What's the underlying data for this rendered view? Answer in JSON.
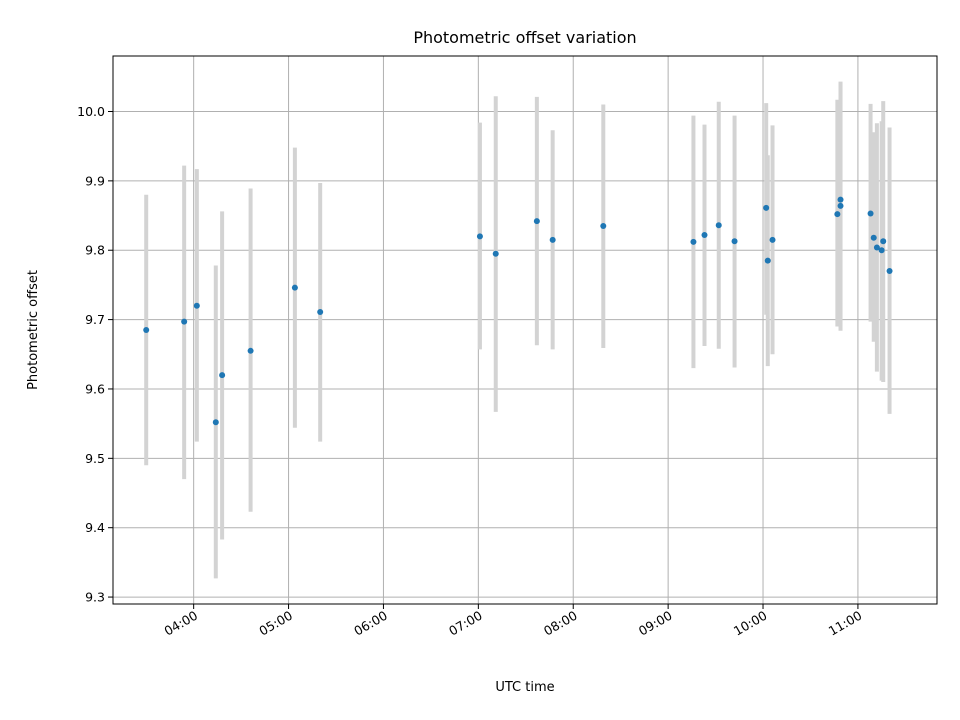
{
  "chart_data": {
    "type": "scatter",
    "title": "Photometric offset variation",
    "xlabel": "UTC time",
    "ylabel": "Photometric offset",
    "x_format": "HH:MM",
    "xlim": [
      "03:09",
      "11:50"
    ],
    "ylim": [
      9.29,
      10.08
    ],
    "x_ticks": [
      "04:00",
      "05:00",
      "06:00",
      "07:00",
      "08:00",
      "09:00",
      "10:00",
      "11:00"
    ],
    "y_ticks": [
      "9.3",
      "9.4",
      "9.5",
      "9.6",
      "9.7",
      "9.8",
      "9.9",
      "10.0"
    ],
    "grid": true,
    "marker_color": "#1f77b4",
    "errorbar_color": "#d3d3d3",
    "points": [
      {
        "x": "03:30",
        "y": 9.685,
        "ylow": 9.49,
        "yhigh": 9.88
      },
      {
        "x": "03:54",
        "y": 9.697,
        "ylow": 9.47,
        "yhigh": 9.922
      },
      {
        "x": "04:02",
        "y": 9.72,
        "ylow": 9.524,
        "yhigh": 9.917
      },
      {
        "x": "04:14",
        "y": 9.552,
        "ylow": 9.327,
        "yhigh": 9.778
      },
      {
        "x": "04:18",
        "y": 9.62,
        "ylow": 9.383,
        "yhigh": 9.856
      },
      {
        "x": "04:36",
        "y": 9.655,
        "ylow": 9.423,
        "yhigh": 9.889
      },
      {
        "x": "05:04",
        "y": 9.746,
        "ylow": 9.544,
        "yhigh": 9.948
      },
      {
        "x": "05:20",
        "y": 9.711,
        "ylow": 9.524,
        "yhigh": 9.897
      },
      {
        "x": "07:01",
        "y": 9.82,
        "ylow": 9.657,
        "yhigh": 9.984
      },
      {
        "x": "07:11",
        "y": 9.795,
        "ylow": 9.567,
        "yhigh": 10.022
      },
      {
        "x": "07:37",
        "y": 9.842,
        "ylow": 9.663,
        "yhigh": 10.021
      },
      {
        "x": "07:47",
        "y": 9.815,
        "ylow": 9.657,
        "yhigh": 9.973
      },
      {
        "x": "08:19",
        "y": 9.835,
        "ylow": 9.659,
        "yhigh": 10.01
      },
      {
        "x": "09:16",
        "y": 9.812,
        "ylow": 9.63,
        "yhigh": 9.994
      },
      {
        "x": "09:23",
        "y": 9.822,
        "ylow": 9.662,
        "yhigh": 9.981
      },
      {
        "x": "09:32",
        "y": 9.836,
        "ylow": 9.658,
        "yhigh": 10.014
      },
      {
        "x": "09:42",
        "y": 9.813,
        "ylow": 9.631,
        "yhigh": 9.994
      },
      {
        "x": "10:02",
        "y": 9.861,
        "ylow": 9.707,
        "yhigh": 10.012
      },
      {
        "x": "10:03",
        "y": 9.785,
        "ylow": 9.633,
        "yhigh": 9.937
      },
      {
        "x": "10:06",
        "y": 9.815,
        "ylow": 9.65,
        "yhigh": 9.98
      },
      {
        "x": "10:47",
        "y": 9.852,
        "ylow": 9.69,
        "yhigh": 10.017
      },
      {
        "x": "10:49",
        "y": 9.873,
        "ylow": 9.702,
        "yhigh": 10.043
      },
      {
        "x": "10:49",
        "y": 9.864,
        "ylow": 9.684,
        "yhigh": 10.042
      },
      {
        "x": "11:08",
        "y": 9.853,
        "ylow": 9.697,
        "yhigh": 10.011
      },
      {
        "x": "11:10",
        "y": 9.818,
        "ylow": 9.668,
        "yhigh": 9.97
      },
      {
        "x": "11:12",
        "y": 9.804,
        "ylow": 9.625,
        "yhigh": 9.983
      },
      {
        "x": "11:15",
        "y": 9.8,
        "ylow": 9.612,
        "yhigh": 9.986
      },
      {
        "x": "11:16",
        "y": 9.813,
        "ylow": 9.61,
        "yhigh": 10.015
      },
      {
        "x": "11:20",
        "y": 9.77,
        "ylow": 9.564,
        "yhigh": 9.977
      }
    ]
  }
}
